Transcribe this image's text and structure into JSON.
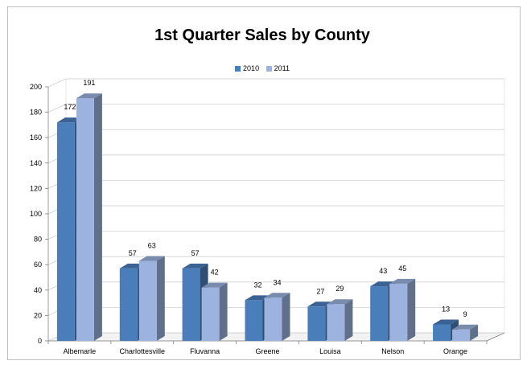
{
  "chart_data": {
    "type": "bar",
    "title": "1st Quarter Sales by County",
    "xlabel": "",
    "ylabel": "",
    "categories": [
      "Albemarle",
      "Charlottesville",
      "Fluvanna",
      "Greene",
      "Louisa",
      "Nelson",
      "Orange"
    ],
    "series": [
      {
        "name": "2010",
        "values": [
          172,
          57,
          57,
          32,
          27,
          43,
          13
        ],
        "color": "#4a7ebb"
      },
      {
        "name": "2011",
        "values": [
          191,
          63,
          42,
          34,
          29,
          45,
          9
        ],
        "color": "#9bb3de"
      }
    ],
    "ylim": [
      0,
      200
    ],
    "yticks": [
      0,
      20,
      40,
      60,
      80,
      100,
      120,
      140,
      160,
      180,
      200
    ],
    "grid": true,
    "legend_position": "top",
    "style": "3d-clustered-column"
  }
}
